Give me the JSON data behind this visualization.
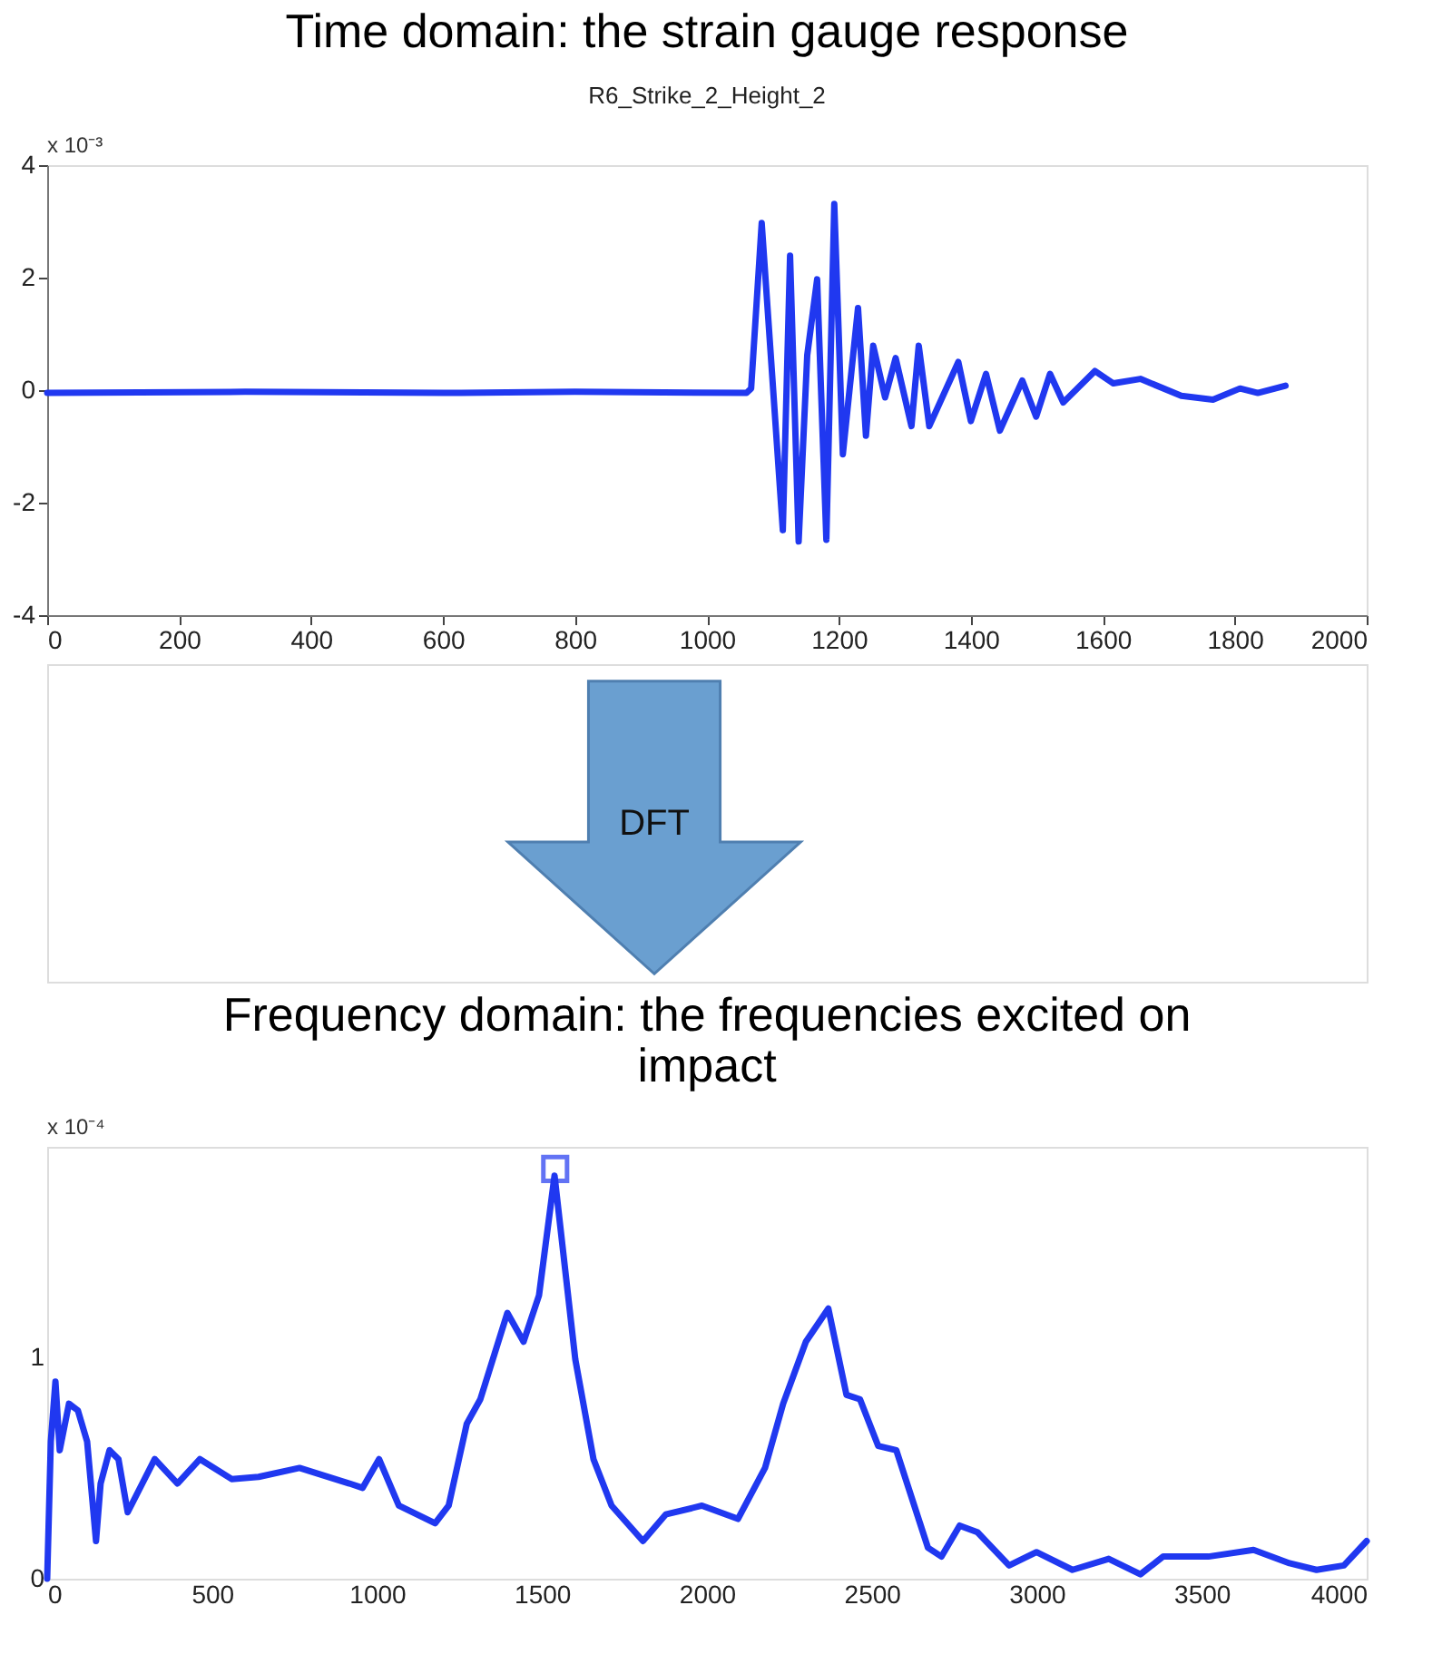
{
  "chart_data": [
    {
      "type": "line",
      "title": "Time domain: the strain gauge response",
      "subtitle": "R6_Strike_2_Height_2",
      "annotations": [
        "x 10⁻³"
      ],
      "xlim": [
        0,
        2000
      ],
      "xticks": [
        0,
        200,
        400,
        600,
        800,
        1000,
        1200,
        1400,
        1600,
        1800,
        2000
      ],
      "ylim": [
        -4,
        4
      ],
      "yticks": [
        -4,
        -2,
        0,
        2,
        4
      ],
      "marker": "none",
      "series": [
        {
          "color": "#2038f0",
          "x": [
            0,
            300,
            600,
            800,
            1060,
            1067,
            1083,
            1115,
            1126,
            1139,
            1152,
            1167,
            1181,
            1193,
            1206,
            1229,
            1241,
            1252,
            1270,
            1286,
            1310,
            1321,
            1337,
            1381,
            1400,
            1423,
            1444,
            1478,
            1499,
            1520,
            1540,
            1588,
            1616,
            1657,
            1719,
            1767,
            1808,
            1835,
            1877
          ],
          "values": [
            -0.05,
            -0.03,
            -0.05,
            -0.03,
            -0.05,
            0.03,
            2.97,
            -2.49,
            2.39,
            -2.69,
            0.62,
            1.97,
            -2.66,
            3.31,
            -1.14,
            1.46,
            -0.81,
            0.79,
            -0.13,
            0.57,
            -0.64,
            0.79,
            -0.64,
            0.5,
            -0.55,
            0.29,
            -0.72,
            0.17,
            -0.47,
            0.29,
            -0.22,
            0.34,
            0.12,
            0.2,
            -0.1,
            -0.17,
            0.03,
            -0.05,
            0.08
          ]
        }
      ]
    },
    {
      "type": "line",
      "title": "Frequency domain: the frequencies excited on impact",
      "annotations": [
        "DFT",
        "x 10⁻⁴"
      ],
      "xlim": [
        0,
        4000
      ],
      "xticks": [
        0,
        500,
        1000,
        1500,
        2000,
        2500,
        3000,
        3500,
        4000
      ],
      "ylim": [
        0,
        1.95
      ],
      "yticks": [
        0,
        1
      ],
      "marker": "none",
      "series": [
        {
          "color": "#2038f0",
          "x": [
            0,
            11,
            25,
            38,
            66,
            93,
            121,
            148,
            162,
            189,
            216,
            244,
            326,
            395,
            463,
            559,
            641,
            765,
            916,
            956,
            1006,
            1066,
            1176,
            1217,
            1272,
            1313,
            1395,
            1444,
            1491,
            1538,
            1601,
            1656,
            1711,
            1806,
            1875,
            1985,
            2094,
            2176,
            2231,
            2300,
            2368,
            2423,
            2464,
            2519,
            2574,
            2670,
            2711,
            2766,
            2820,
            2916,
            2999,
            3108,
            3218,
            3314,
            3383,
            3520,
            3657,
            3766,
            3848,
            3931,
            4000
          ],
          "values": [
            0,
            0.62,
            0.89,
            0.58,
            0.79,
            0.76,
            0.62,
            0.17,
            0.43,
            0.58,
            0.54,
            0.3,
            0.54,
            0.43,
            0.54,
            0.45,
            0.46,
            0.5,
            0.43,
            0.41,
            0.54,
            0.33,
            0.25,
            0.33,
            0.7,
            0.81,
            1.2,
            1.07,
            1.28,
            1.82,
            0.99,
            0.54,
            0.33,
            0.17,
            0.29,
            0.33,
            0.27,
            0.5,
            0.79,
            1.07,
            1.22,
            0.83,
            0.81,
            0.6,
            0.58,
            0.14,
            0.1,
            0.24,
            0.21,
            0.06,
            0.12,
            0.04,
            0.09,
            0.02,
            0.1,
            0.1,
            0.13,
            0.07,
            0.04,
            0.06,
            0.17
          ]
        },
        {
          "type": "scatter",
          "marker": "square",
          "color": "#2038f0",
          "x": [
            1540
          ],
          "values": [
            1.85
          ]
        }
      ]
    }
  ]
}
